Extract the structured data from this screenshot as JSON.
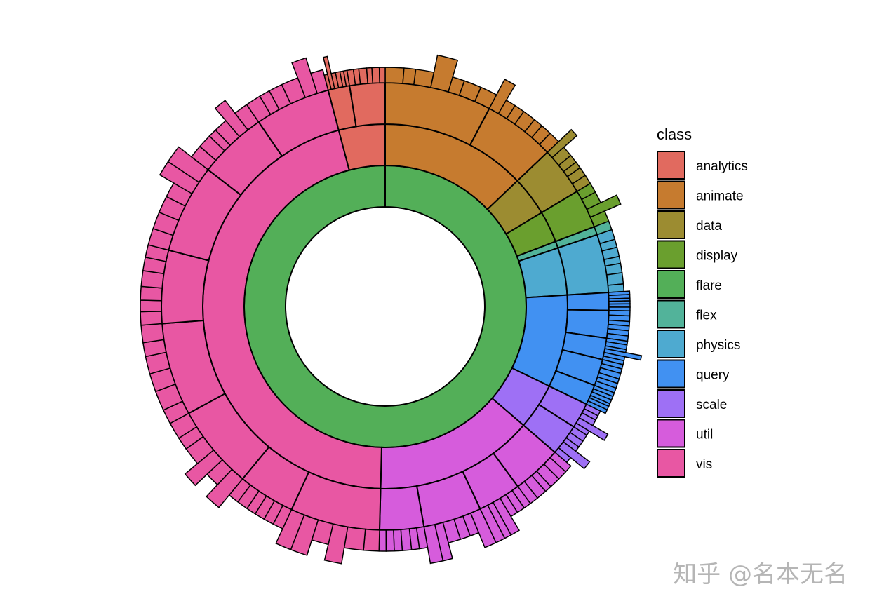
{
  "chart_data": {
    "type": "sunburst",
    "levels": [
      "root",
      "package",
      "subpackage",
      "leaf"
    ],
    "legend": {
      "title": "class",
      "placement": "right",
      "entries": [
        {
          "label": "analytics",
          "color": "#E16A5F"
        },
        {
          "label": "animate",
          "color": "#C67B2F"
        },
        {
          "label": "data",
          "color": "#9C8C31"
        },
        {
          "label": "display",
          "color": "#6A9F2E"
        },
        {
          "label": "flare",
          "color": "#53AF58"
        },
        {
          "label": "flex",
          "color": "#52B39A"
        },
        {
          "label": "physics",
          "color": "#4EAAD0"
        },
        {
          "label": "query",
          "color": "#4191F2"
        },
        {
          "label": "scale",
          "color": "#9E70F5"
        },
        {
          "label": "util",
          "color": "#D65CDC"
        },
        {
          "label": "vis",
          "color": "#E857A3"
        }
      ]
    },
    "root": {
      "name": "flare",
      "value": 100
    },
    "packages": [
      {
        "name": "animate",
        "value": 12.9,
        "leaves": 14
      },
      {
        "name": "data",
        "value": 3.5,
        "leaves": 6
      },
      {
        "name": "display",
        "value": 2.8,
        "leaves": 4
      },
      {
        "name": "flex",
        "value": 0.6,
        "leaves": 1
      },
      {
        "name": "physics",
        "value": 4.2,
        "leaves": 7
      },
      {
        "name": "query",
        "value": 8.2,
        "leaves": 30
      },
      {
        "name": "scale",
        "value": 4.1,
        "leaves": 10
      },
      {
        "name": "util",
        "value": 14.1,
        "leaves": 25
      },
      {
        "name": "vis",
        "value": 45.5,
        "leaves": 50
      },
      {
        "name": "analytics",
        "value": 4.1,
        "leaves": 12
      }
    ]
  },
  "watermark": "知乎 @名本无名"
}
